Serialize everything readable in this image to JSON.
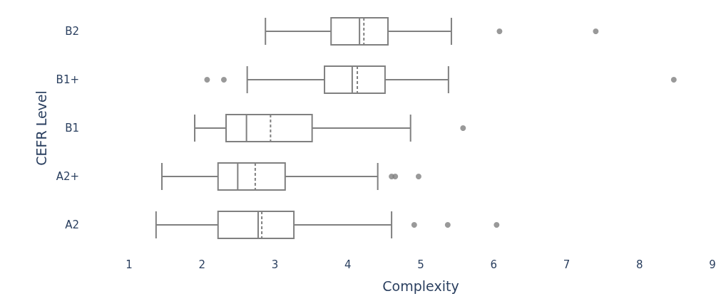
{
  "chart_data": {
    "type": "box",
    "orientation": "horizontal",
    "xlabel": "Complexity",
    "ylabel": "CEFR Level",
    "categories": [
      "B2",
      "B1+",
      "B1",
      "A2+",
      "A2"
    ],
    "boxes": [
      {
        "low": 2.87,
        "q1": 3.77,
        "median": 4.16,
        "q3": 4.55,
        "high": 5.42,
        "mean": 4.22,
        "outliers": [
          6.08,
          7.4
        ]
      },
      {
        "low": 2.62,
        "q1": 3.68,
        "median": 4.06,
        "q3": 4.51,
        "high": 5.38,
        "mean": 4.13,
        "outliers": [
          2.07,
          2.3,
          8.47
        ]
      },
      {
        "low": 1.9,
        "q1": 2.33,
        "median": 2.61,
        "q3": 3.51,
        "high": 4.86,
        "mean": 2.94,
        "outliers": [
          5.58
        ]
      },
      {
        "low": 1.45,
        "q1": 2.22,
        "median": 2.49,
        "q3": 3.14,
        "high": 4.41,
        "mean": 2.73,
        "outliers": [
          4.6,
          4.65,
          4.97
        ]
      },
      {
        "low": 1.37,
        "q1": 2.22,
        "median": 2.77,
        "q3": 3.26,
        "high": 4.6,
        "mean": 2.82,
        "outliers": [
          4.91,
          5.37,
          6.04
        ]
      }
    ],
    "color": "#808080",
    "xlim": [
      1,
      9
    ],
    "xticks": [
      1,
      2,
      3,
      4,
      5,
      6,
      7,
      8,
      9
    ],
    "grid": false
  }
}
